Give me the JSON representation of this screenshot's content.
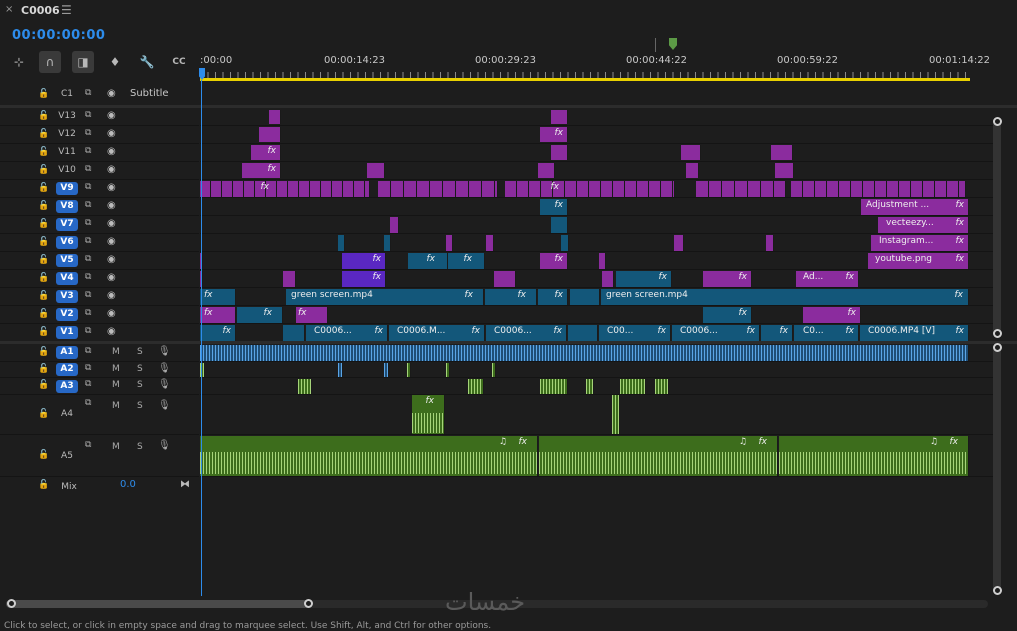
{
  "tab": {
    "title": "C0006",
    "close": "×",
    "menu": "☰"
  },
  "timecode": "00:00:00:00",
  "toolbar": [
    {
      "name": "insert-snap-icon",
      "glyph": "⊹"
    },
    {
      "name": "snap-magnet-icon",
      "glyph": "∩"
    },
    {
      "name": "linked-selection-icon",
      "glyph": "◨"
    },
    {
      "name": "add-marker-icon",
      "glyph": "♦"
    },
    {
      "name": "wrench-icon",
      "glyph": "🔧"
    },
    {
      "name": "captions-icon",
      "glyph": "CC"
    }
  ],
  "ruler": {
    "ticks": [
      ":00:00",
      "00:00:14:23",
      "00:00:29:23",
      "00:00:44:22",
      "00:00:59:22",
      "00:01:14:22"
    ]
  },
  "subtitle_track": {
    "name": "C1",
    "label": "Subtitle"
  },
  "video_tracks": [
    {
      "name": "V13",
      "on": false
    },
    {
      "name": "V12",
      "on": false
    },
    {
      "name": "V11",
      "on": false
    },
    {
      "name": "V10",
      "on": false
    },
    {
      "name": "V9",
      "on": true
    },
    {
      "name": "V8",
      "on": true
    },
    {
      "name": "V7",
      "on": true
    },
    {
      "name": "V6",
      "on": true
    },
    {
      "name": "V5",
      "on": true
    },
    {
      "name": "V4",
      "on": true
    },
    {
      "name": "V3",
      "on": true
    },
    {
      "name": "V2",
      "on": true
    },
    {
      "name": "V1",
      "on": true
    }
  ],
  "audio_tracks": [
    {
      "name": "A1",
      "on": true
    },
    {
      "name": "A2",
      "on": true
    },
    {
      "name": "A3",
      "on": true
    },
    {
      "name": "A4",
      "on": false
    },
    {
      "name": "A5",
      "on": false
    }
  ],
  "mix": {
    "label": "Mix",
    "value": "0.0"
  },
  "clip_labels": {
    "adjustment": "Adjustment ...",
    "vecteezy": "vecteezy...",
    "instagram": "Instagram...",
    "youtube": "youtube.png",
    "ad": "Ad...",
    "green1": "green screen.mp4",
    "green2": "green screen.mp4",
    "c1": "C0006...",
    "c2": "C0006.M...",
    "c3": "C0006...",
    "c4": "C00...",
    "c5": "C0006...",
    "c6": "C0...",
    "c7": "C0006.MP4 [V]",
    "fx": "fx"
  },
  "status": "Click to select, or click in empty space and drag to marquee select. Use Shift, Alt, and Ctrl for other options.",
  "watermark": "خمسات"
}
